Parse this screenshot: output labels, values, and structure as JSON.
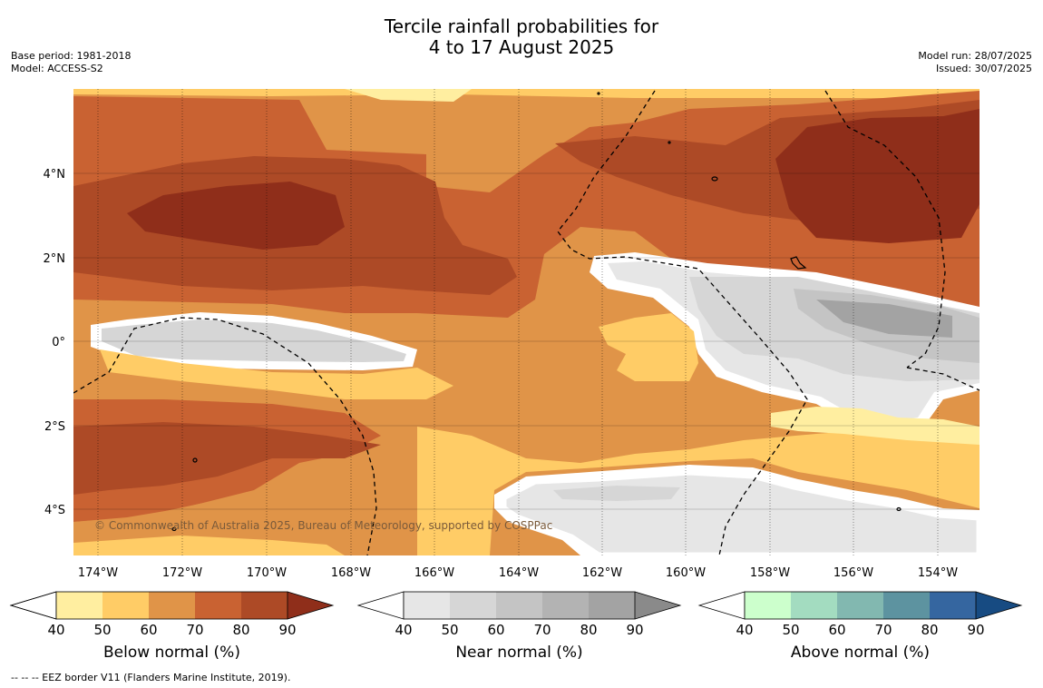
{
  "title": {
    "line1": "Tercile rainfall probabilities for",
    "line2": "4 to 17 August 2025"
  },
  "meta_left": {
    "base_period": "Base period: 1981-2018",
    "model": "Model: ACCESS-S2"
  },
  "meta_right": {
    "model_run": "Model run: 28/07/2025",
    "issued": "Issued: 30/07/2025"
  },
  "map": {
    "lon_labels": [
      "174°W",
      "172°W",
      "170°W",
      "168°W",
      "166°W",
      "164°W",
      "162°W",
      "160°W",
      "158°W",
      "156°W",
      "154°W"
    ],
    "lat_labels": [
      "4°N",
      "2°N",
      "0°",
      "2°S",
      "4°S"
    ],
    "copyright": "© Commonwealth of Australia 2025, Bureau of Meteorology, supported by COSPPac"
  },
  "colorbars": [
    {
      "title": "Below normal (%)",
      "ticks": [
        "40",
        "50",
        "60",
        "70",
        "80",
        "90"
      ],
      "colors": [
        "#ffeea0",
        "#ffcc66",
        "#e09448",
        "#c96232",
        "#ad4a26",
        "#8f2e1a"
      ]
    },
    {
      "title": "Near normal (%)",
      "ticks": [
        "40",
        "50",
        "60",
        "70",
        "80",
        "90"
      ],
      "colors": [
        "#e6e6e6",
        "#d6d6d6",
        "#c4c4c4",
        "#b3b3b3",
        "#a3a3a3",
        "#8a8a8a"
      ]
    },
    {
      "title": "Above normal (%)",
      "ticks": [
        "40",
        "50",
        "60",
        "70",
        "80",
        "90"
      ],
      "colors": [
        "#ccffcc",
        "#a3dcc0",
        "#82b8b0",
        "#5d93a0",
        "#3566a0",
        "#174b82"
      ]
    }
  ],
  "footnote": "-- -- -- EEZ border V11 (Flanders Marine Institute, 2019)."
}
